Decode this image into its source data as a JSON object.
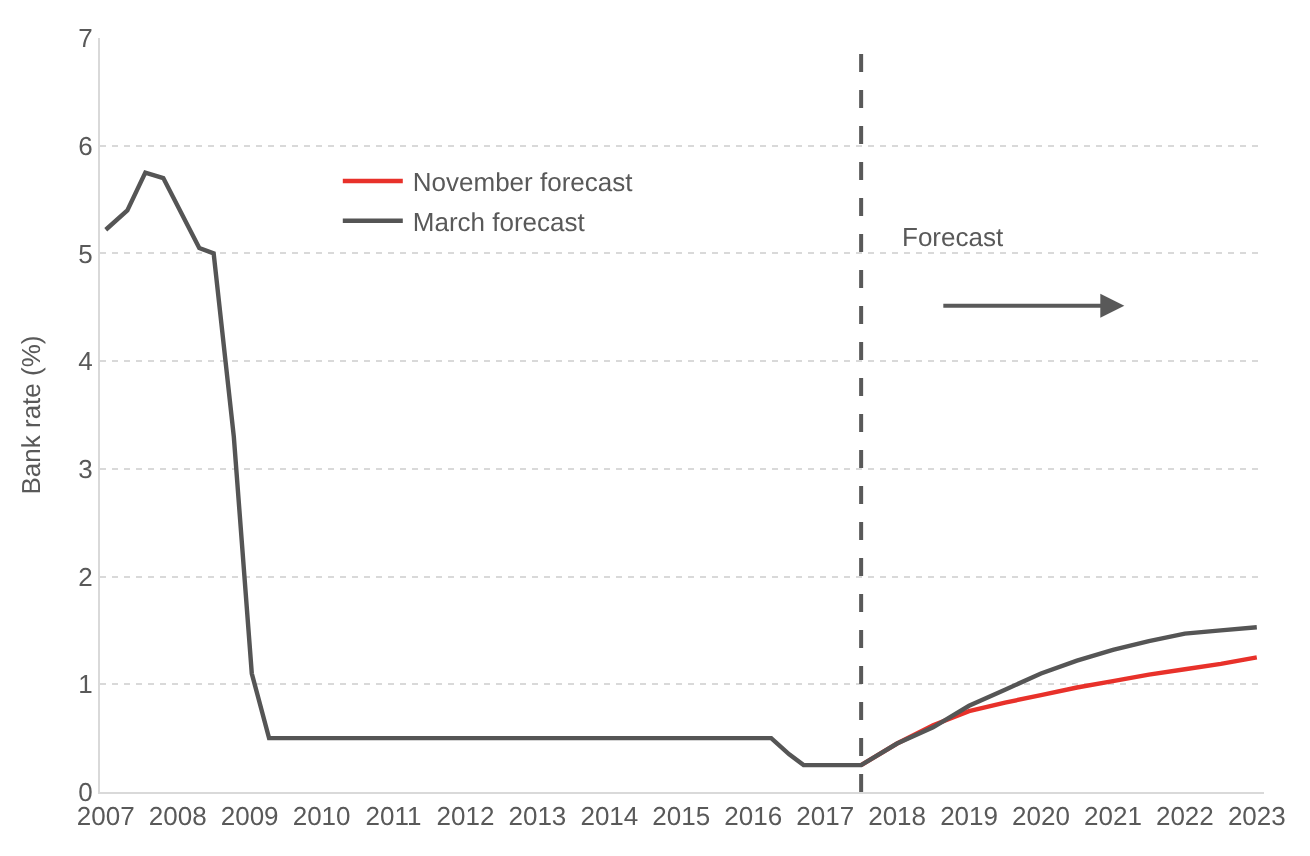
{
  "chart_data": {
    "type": "line",
    "ylabel": "Bank rate (%)",
    "xlim": [
      2006.92,
      2023.1
    ],
    "xticks": [
      2007,
      2008,
      2009,
      2010,
      2011,
      2012,
      2013,
      2014,
      2015,
      2016,
      2017,
      2018,
      2019,
      2020,
      2021,
      2022,
      2023
    ],
    "ylim": [
      0,
      7
    ],
    "yticks": [
      0,
      1,
      2,
      3,
      4,
      5,
      6,
      7
    ],
    "grid": "y",
    "legend": "top left",
    "marker": "none",
    "line_style": "solid",
    "series": [
      {
        "name": "November forecast",
        "color": "#e8312a",
        "x": [
          2017.5,
          2018.0,
          2018.5,
          2019.0,
          2019.5,
          2020.0,
          2020.5,
          2021.0,
          2021.5,
          2022.0,
          2022.5,
          2023.0
        ],
        "values": [
          0.25,
          0.45,
          0.62,
          0.75,
          0.83,
          0.9,
          0.97,
          1.03,
          1.09,
          1.14,
          1.19,
          1.25
        ]
      },
      {
        "name": "March forecast",
        "color": "#555555",
        "x": [
          2007.0,
          2007.3,
          2007.55,
          2007.8,
          2008.3,
          2008.5,
          2008.78,
          2009.03,
          2009.27,
          2016.25,
          2016.5,
          2016.7,
          2017.5,
          2018.0,
          2018.5,
          2019.0,
          2019.5,
          2020.0,
          2020.5,
          2021.0,
          2021.5,
          2022.0,
          2022.5,
          2023.0
        ],
        "values": [
          5.22,
          5.4,
          5.75,
          5.7,
          5.05,
          5.0,
          3.3,
          1.1,
          0.5,
          0.5,
          0.35,
          0.25,
          0.25,
          0.45,
          0.6,
          0.8,
          0.95,
          1.1,
          1.22,
          1.32,
          1.4,
          1.47,
          1.5,
          1.53
        ]
      }
    ],
    "ref_lines": [
      {
        "axis": "x",
        "value": 2017.5,
        "label": null,
        "color": "#595959",
        "line_style": "dashed"
      }
    ],
    "annotations": [
      "Forecast"
    ]
  }
}
